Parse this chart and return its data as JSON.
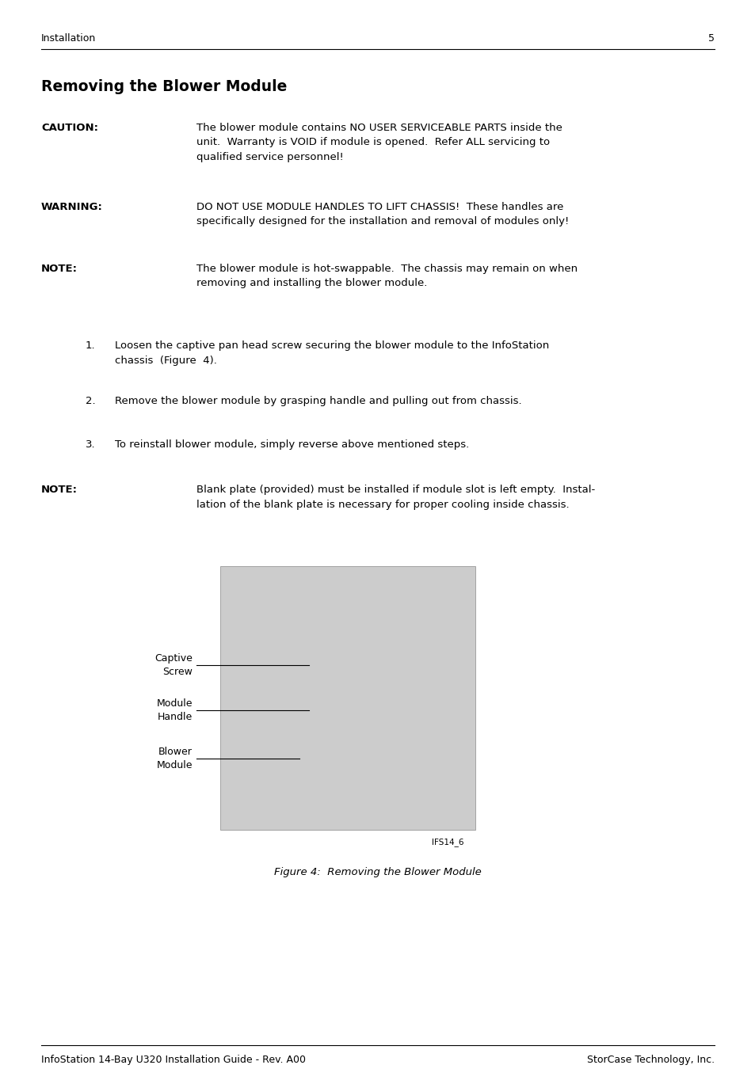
{
  "page_title": "Installation",
  "page_number": "5",
  "section_title": "Removing the Blower Module",
  "caution_label": "CAUTION:",
  "caution_text": "The blower module contains NO USER SERVICEABLE PARTS inside the\nunit.  Warranty is VOID if module is opened.  Refer ALL servicing to\nqualified service personnel!",
  "warning_label": "WARNING:",
  "warning_text": "DO NOT USE MODULE HANDLES TO LIFT CHASSIS!  These handles are\nspecifically designed for the installation and removal of modules only!",
  "note_label1": "NOTE:",
  "note_text1": "The blower module is hot-swappable.  The chassis may remain on when\nremoving and installing the blower module.",
  "steps": [
    "Loosen the captive pan head screw securing the blower module to the InfoStation\nchassis  (Figure  4).",
    "Remove the blower module by grasping handle and pulling out from chassis.",
    "To reinstall blower module, simply reverse above mentioned steps."
  ],
  "note_label2": "NOTE:",
  "note_text2": "Blank plate (provided) must be installed if module slot is left empty.  Instal-\nlation of the blank plate is necessary for proper cooling inside chassis.",
  "fig_labels": [
    "Captive\nScrew",
    "Module\nHandle",
    "Blower\nModule"
  ],
  "fig_caption": "Figure 4:  Removing the Blower Module",
  "fig_tag": "IFS14_6",
  "footer_left": "InfoStation 14-Bay U320 Installation Guide - Rev. A00",
  "footer_right": "StorCase Technology, Inc.",
  "bg_color": "#ffffff",
  "text_color": "#000000"
}
